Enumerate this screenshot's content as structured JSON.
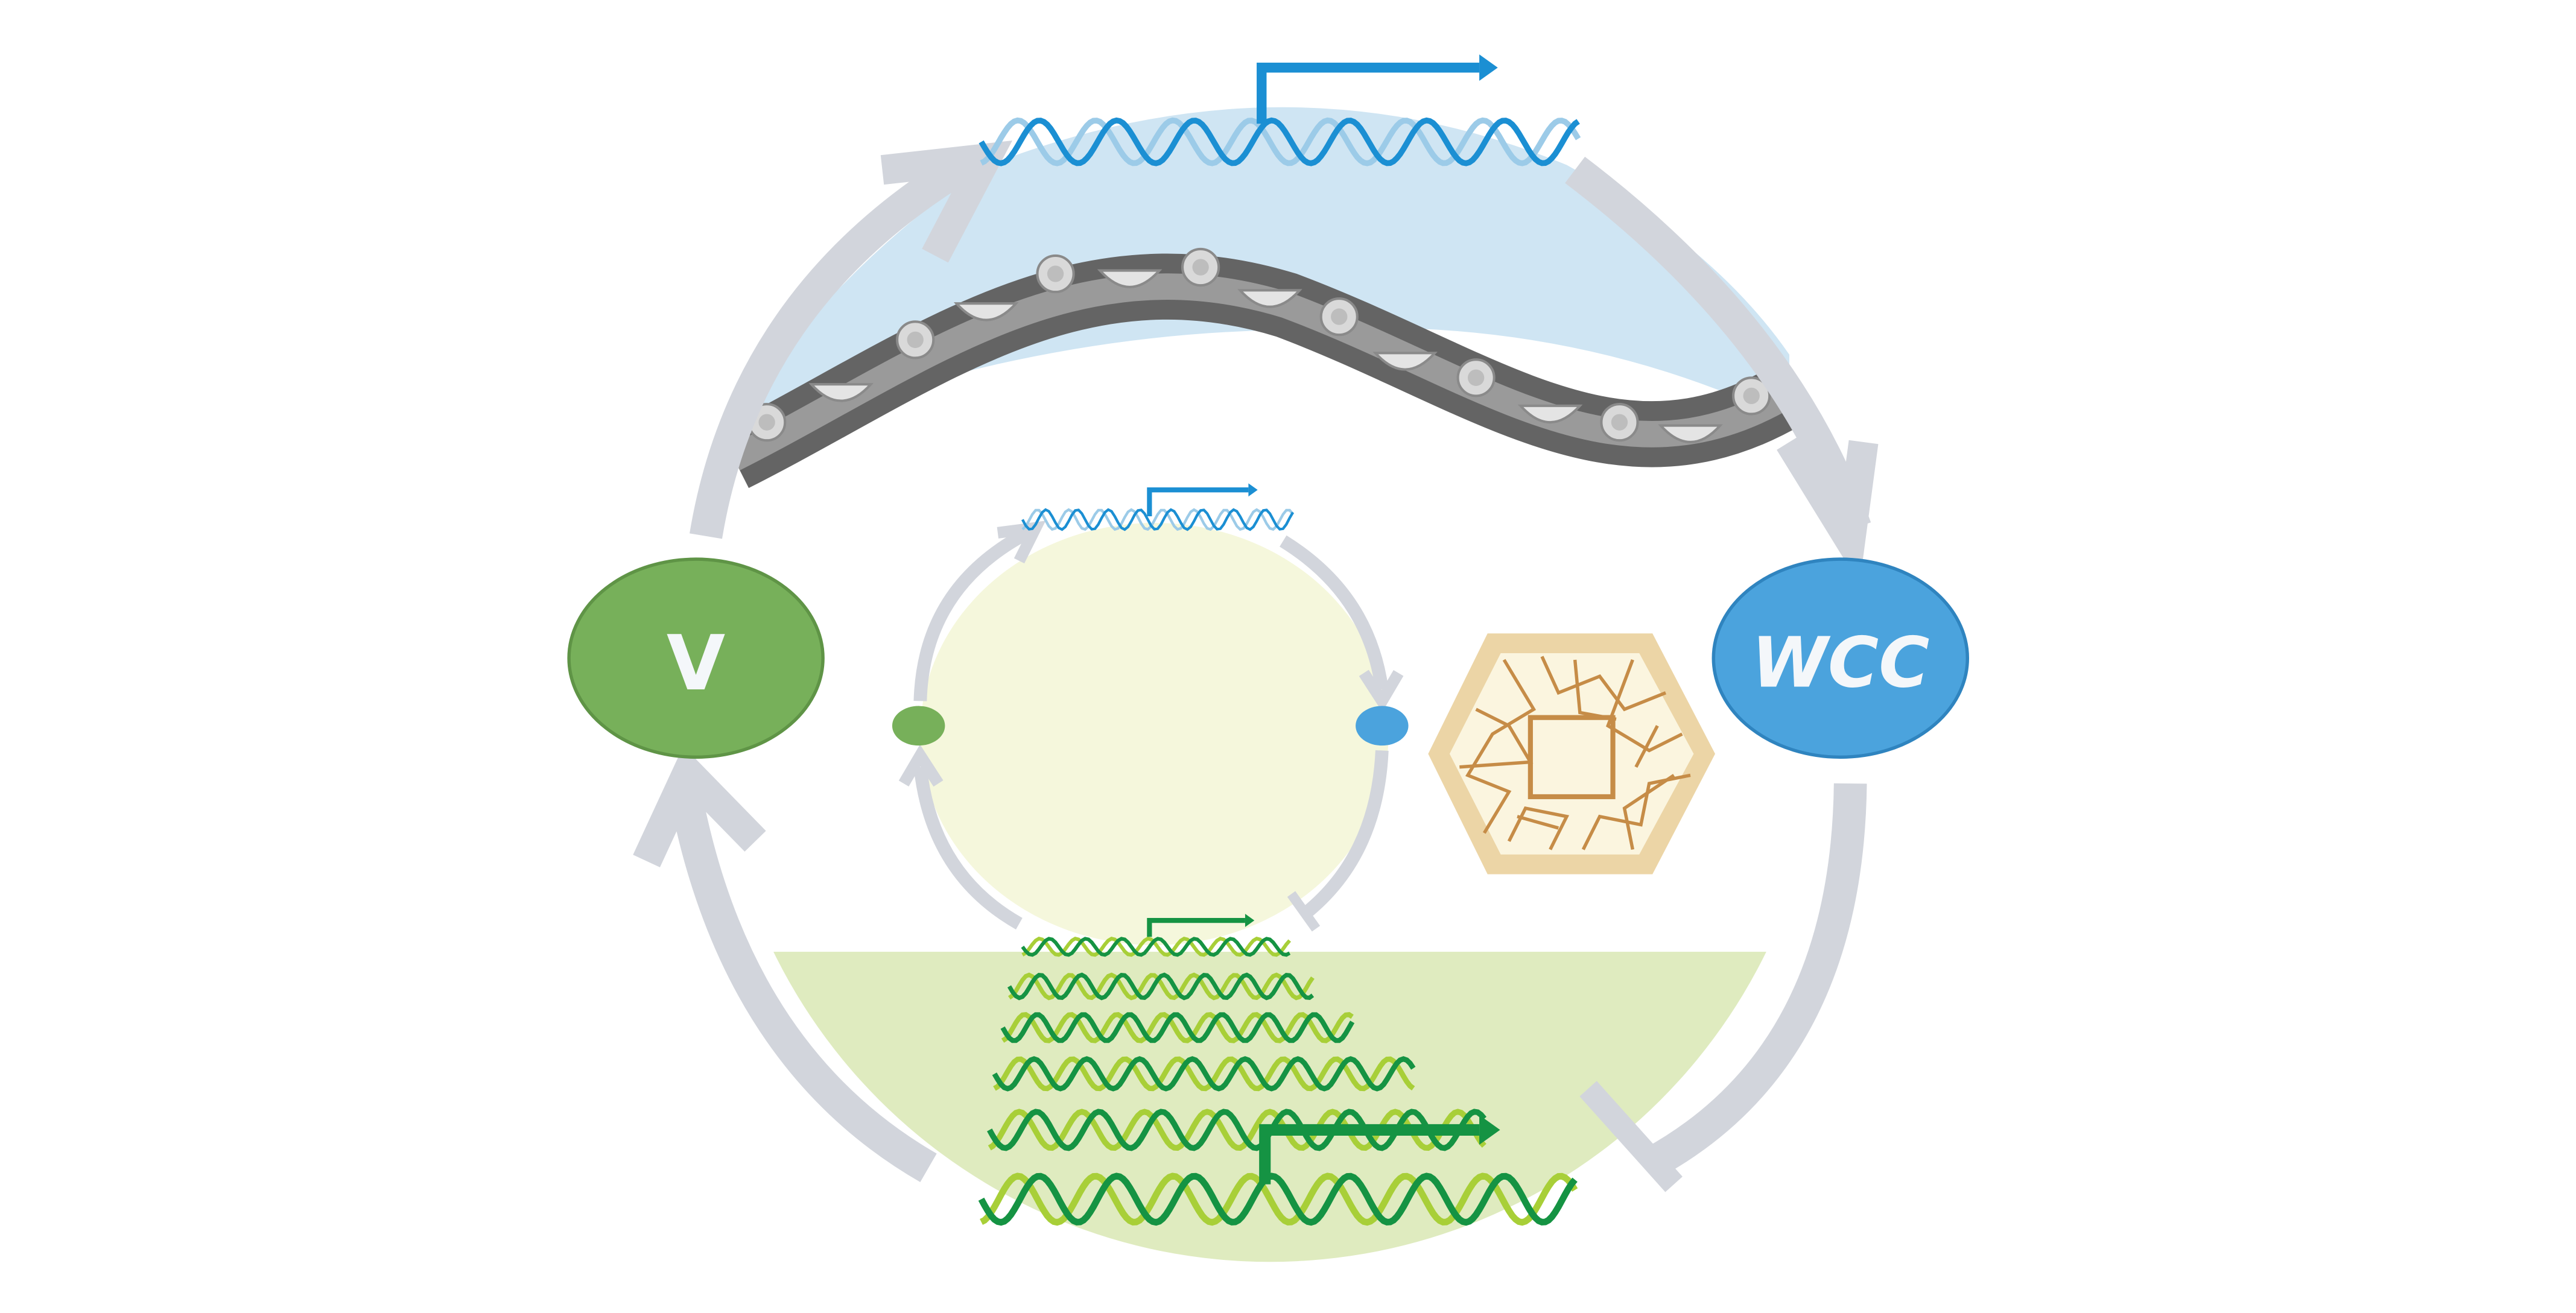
{
  "nodes": {
    "v": {
      "label": "V",
      "color": "#77b05a",
      "border": "#5f9446"
    },
    "wcc": {
      "label": "WCC",
      "color": "#4ba3dd",
      "border": "#2f84bf"
    }
  },
  "colors": {
    "arrow": "#d2d5dc",
    "top_region": "#cfe5f3",
    "bottom_region": "#dfebbf",
    "center_disc": "#f5f7dc",
    "dna_blue_dark": "#1b8fd3",
    "dna_blue_light": "#9ccbe8",
    "dna_green_dark": "#159343",
    "dna_green_light": "#a8cf38",
    "hexagon_frame": "#ecd5a6",
    "hexagon_core": "#fbf5df",
    "crack": "#c68c47",
    "membrane_dark": "#646464",
    "membrane_mid": "#9a9a9a"
  },
  "icons": [
    "dna-helix-icon",
    "transcription-start-arrow-icon",
    "protein-complex-icon",
    "cell-wall-hexagon-icon",
    "inhibition-bar-icon"
  ]
}
